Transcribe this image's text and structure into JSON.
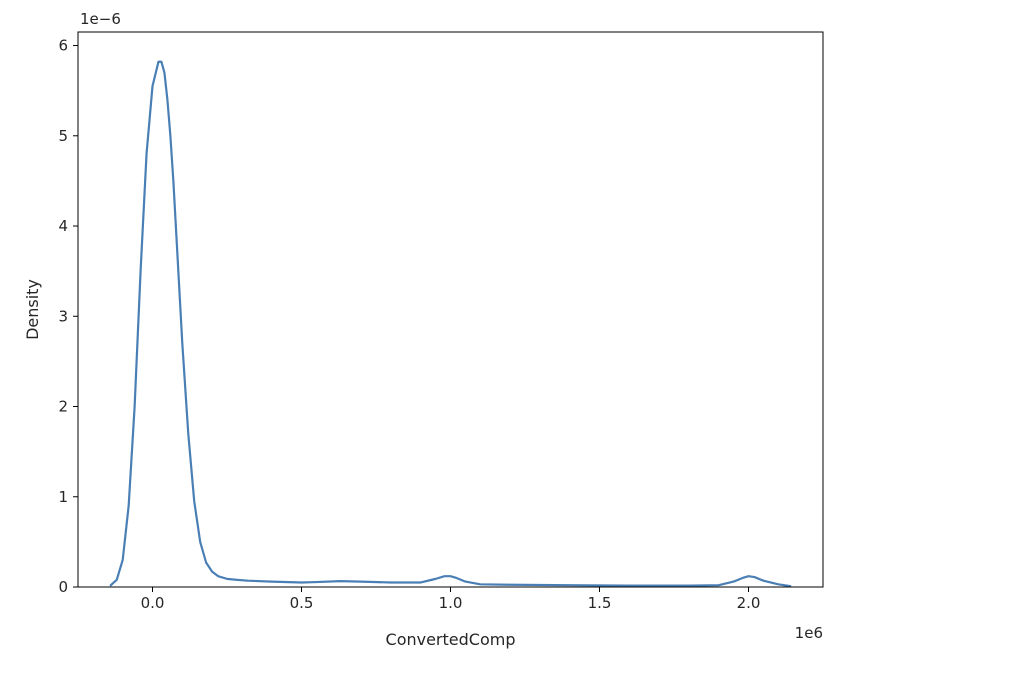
{
  "chart_data": {
    "type": "line",
    "title": "",
    "xlabel": "ConvertedComp",
    "ylabel": "Density",
    "x_offset_label": "1e6",
    "y_offset_label": "1e−6",
    "xlim": [
      -0.25,
      2.25
    ],
    "ylim": [
      0,
      6.15
    ],
    "x_ticks": [
      0.0,
      0.5,
      1.0,
      1.5,
      2.0
    ],
    "x_tick_labels": [
      "0.0",
      "0.5",
      "1.0",
      "1.5",
      "2.0"
    ],
    "y_ticks": [
      0,
      1,
      2,
      3,
      4,
      5,
      6
    ],
    "y_tick_labels": [
      "0",
      "1",
      "2",
      "3",
      "4",
      "5",
      "6"
    ],
    "grid": false,
    "legend": "none",
    "color": "#4a7fb5",
    "series": [
      {
        "x": [
          -0.14,
          -0.12,
          -0.1,
          -0.08,
          -0.06,
          -0.04,
          -0.02,
          0.0,
          0.02,
          0.03,
          0.04,
          0.05,
          0.06,
          0.07,
          0.08,
          0.1,
          0.12,
          0.14,
          0.16,
          0.18,
          0.2,
          0.22,
          0.25,
          0.28,
          0.32,
          0.4,
          0.5,
          0.55,
          0.63,
          0.7,
          0.8,
          0.9,
          0.95,
          0.98,
          1.0,
          1.02,
          1.05,
          1.1,
          1.2,
          1.4,
          1.6,
          1.8,
          1.9,
          1.95,
          1.98,
          2.0,
          2.02,
          2.05,
          2.1,
          2.14
        ],
        "y": [
          0.02,
          0.08,
          0.3,
          0.9,
          2.0,
          3.5,
          4.8,
          5.55,
          5.82,
          5.82,
          5.7,
          5.4,
          5.0,
          4.5,
          3.9,
          2.7,
          1.7,
          0.95,
          0.5,
          0.27,
          0.17,
          0.12,
          0.09,
          0.08,
          0.07,
          0.06,
          0.05,
          0.055,
          0.065,
          0.06,
          0.05,
          0.05,
          0.09,
          0.12,
          0.12,
          0.1,
          0.06,
          0.03,
          0.025,
          0.02,
          0.015,
          0.015,
          0.02,
          0.06,
          0.1,
          0.12,
          0.11,
          0.07,
          0.03,
          0.01
        ]
      }
    ]
  }
}
